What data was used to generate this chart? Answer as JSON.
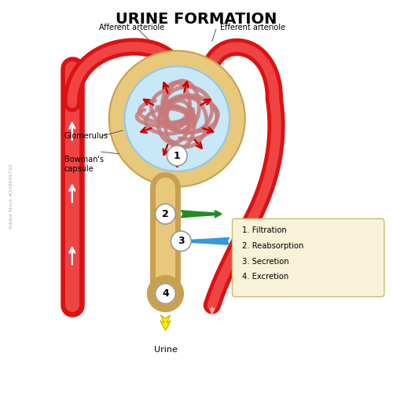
{
  "title": "URINE FORMATION",
  "title_fontsize": 14,
  "title_fontweight": "bold",
  "background_color": "#ffffff",
  "legend_items": [
    "1. Filtration",
    "2. Reabsorption",
    "3. Secretion",
    "4. Excretion"
  ],
  "legend_bg": "#f8f2d8",
  "legend_border": "#c8b870",
  "labels": {
    "afferent": "Afferent arteriole",
    "efferent": "Efferent arteriole",
    "glomerulus": "Glomerulus",
    "bowman": "Bowman's\ncapsule",
    "urine": "Urine"
  },
  "colors": {
    "red_vessel": "#dd1111",
    "red_vessel_light": "#ee4444",
    "red_vessel_inner": "#ee8888",
    "bowman_fill": "#e8c87a",
    "bowman_edge": "#c8a050",
    "glom_fill": "#c8e8f8",
    "glom_edge": "#90c8e8",
    "capillary": "#c87878",
    "capillary2": "#b06060",
    "tubule_fill": "#e8c87a",
    "tubule_edge": "#c8a050",
    "duct_ring": "#c8a050",
    "duct_fill": "#e8c87a",
    "arrow_red": "#cc0000",
    "arrow_green": "#228B22",
    "arrow_blue": "#3399dd",
    "arrow_yellow": "#ffee00",
    "white": "#ffffff",
    "circle_edge": "#999999"
  }
}
